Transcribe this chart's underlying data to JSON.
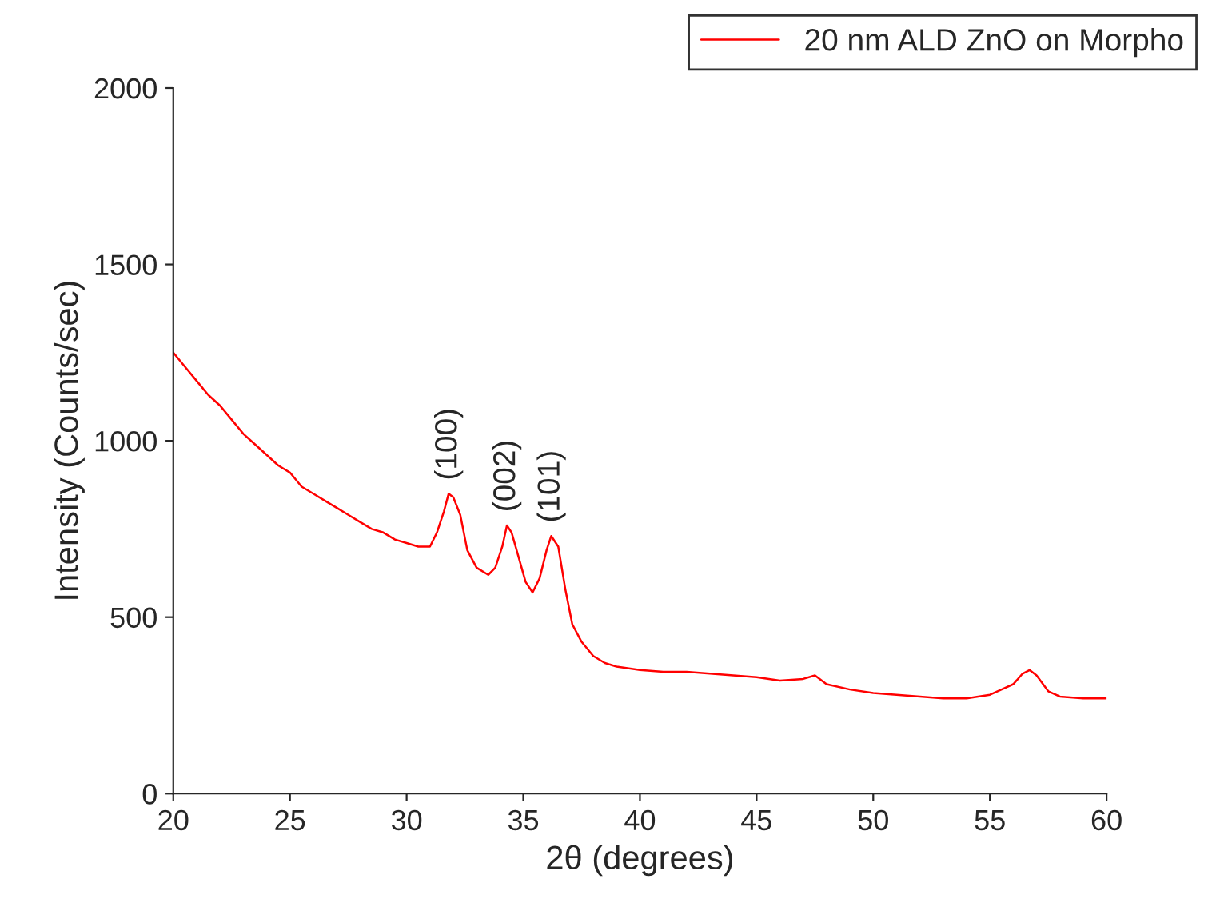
{
  "chart_data": {
    "type": "line",
    "xlabel": "2θ (degrees)",
    "ylabel": "Intensity (Counts/sec)",
    "x": [
      20,
      20.5,
      21,
      21.5,
      22,
      22.5,
      23,
      23.5,
      24,
      24.5,
      25,
      25.5,
      26,
      26.5,
      27,
      27.5,
      28,
      28.5,
      29,
      29.5,
      30,
      30.5,
      31,
      31.3,
      31.6,
      31.8,
      32.0,
      32.3,
      32.6,
      33,
      33.5,
      33.8,
      34.1,
      34.3,
      34.5,
      34.8,
      35.1,
      35.4,
      35.7,
      36.0,
      36.2,
      36.5,
      36.8,
      37.1,
      37.5,
      38,
      38.5,
      39,
      40,
      41,
      42,
      43,
      44,
      45,
      46,
      47,
      47.5,
      48,
      49,
      50,
      51,
      52,
      53,
      54,
      55,
      55.5,
      56,
      56.4,
      56.7,
      57,
      57.5,
      58,
      59,
      60
    ],
    "series": [
      {
        "name": "20 nm ALD ZnO on Morpho",
        "color": "#ff0000",
        "values": [
          1250,
          1210,
          1170,
          1130,
          1100,
          1060,
          1020,
          990,
          960,
          930,
          910,
          870,
          850,
          830,
          810,
          790,
          770,
          750,
          740,
          720,
          710,
          700,
          700,
          740,
          800,
          850,
          840,
          790,
          690,
          640,
          620,
          640,
          700,
          760,
          740,
          670,
          600,
          570,
          610,
          690,
          730,
          700,
          580,
          480,
          430,
          390,
          370,
          360,
          350,
          345,
          345,
          340,
          335,
          330,
          320,
          325,
          335,
          310,
          295,
          285,
          280,
          275,
          270,
          270,
          280,
          295,
          310,
          340,
          350,
          335,
          290,
          275,
          270,
          270
        ]
      }
    ],
    "xlim": [
      20,
      60
    ],
    "ylim": [
      0,
      2000
    ],
    "xticks": [
      20,
      25,
      30,
      35,
      40,
      45,
      50,
      55,
      60
    ],
    "yticks": [
      0,
      500,
      1000,
      1500,
      2000
    ],
    "annotations": [
      {
        "text": "(100)",
        "x": 31.8,
        "y": 850
      },
      {
        "text": "(002)",
        "x": 34.3,
        "y": 760
      },
      {
        "text": "(101)",
        "x": 36.2,
        "y": 730
      }
    ],
    "legend": "top right",
    "grid": false
  }
}
